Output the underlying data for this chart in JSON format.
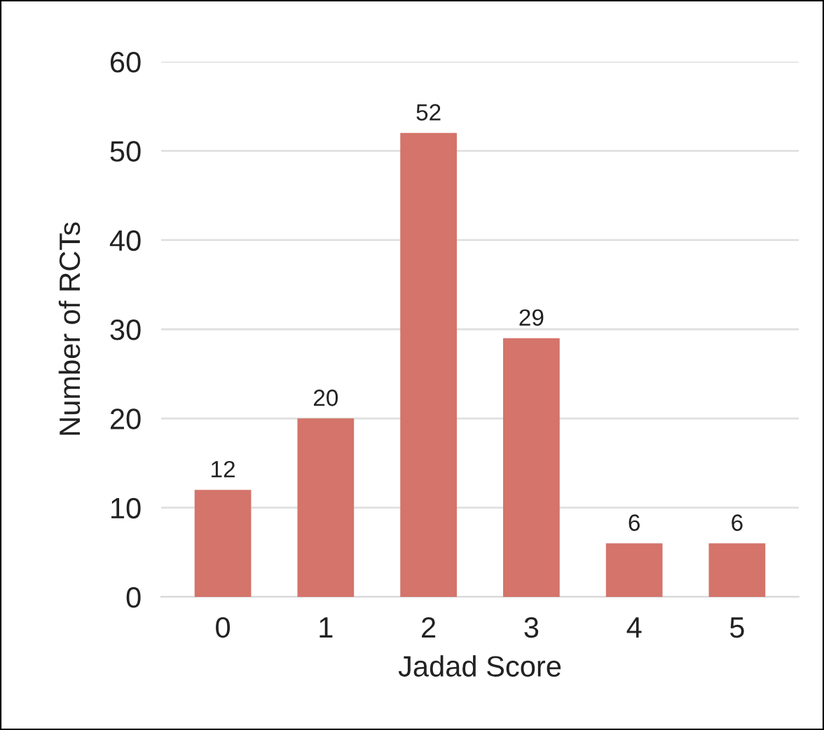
{
  "chart_data": {
    "type": "bar",
    "xlabel": "Jadad Score",
    "ylabel": "Number of RCTs",
    "categories": [
      "0",
      "1",
      "2",
      "3",
      "4",
      "5"
    ],
    "values": [
      12,
      20,
      52,
      29,
      6,
      6
    ],
    "color": "#d4746a",
    "ylim": [
      0,
      60
    ],
    "yticks": [
      0,
      10,
      20,
      30,
      40,
      50,
      60
    ],
    "grid": "y",
    "data_labels": true
  }
}
